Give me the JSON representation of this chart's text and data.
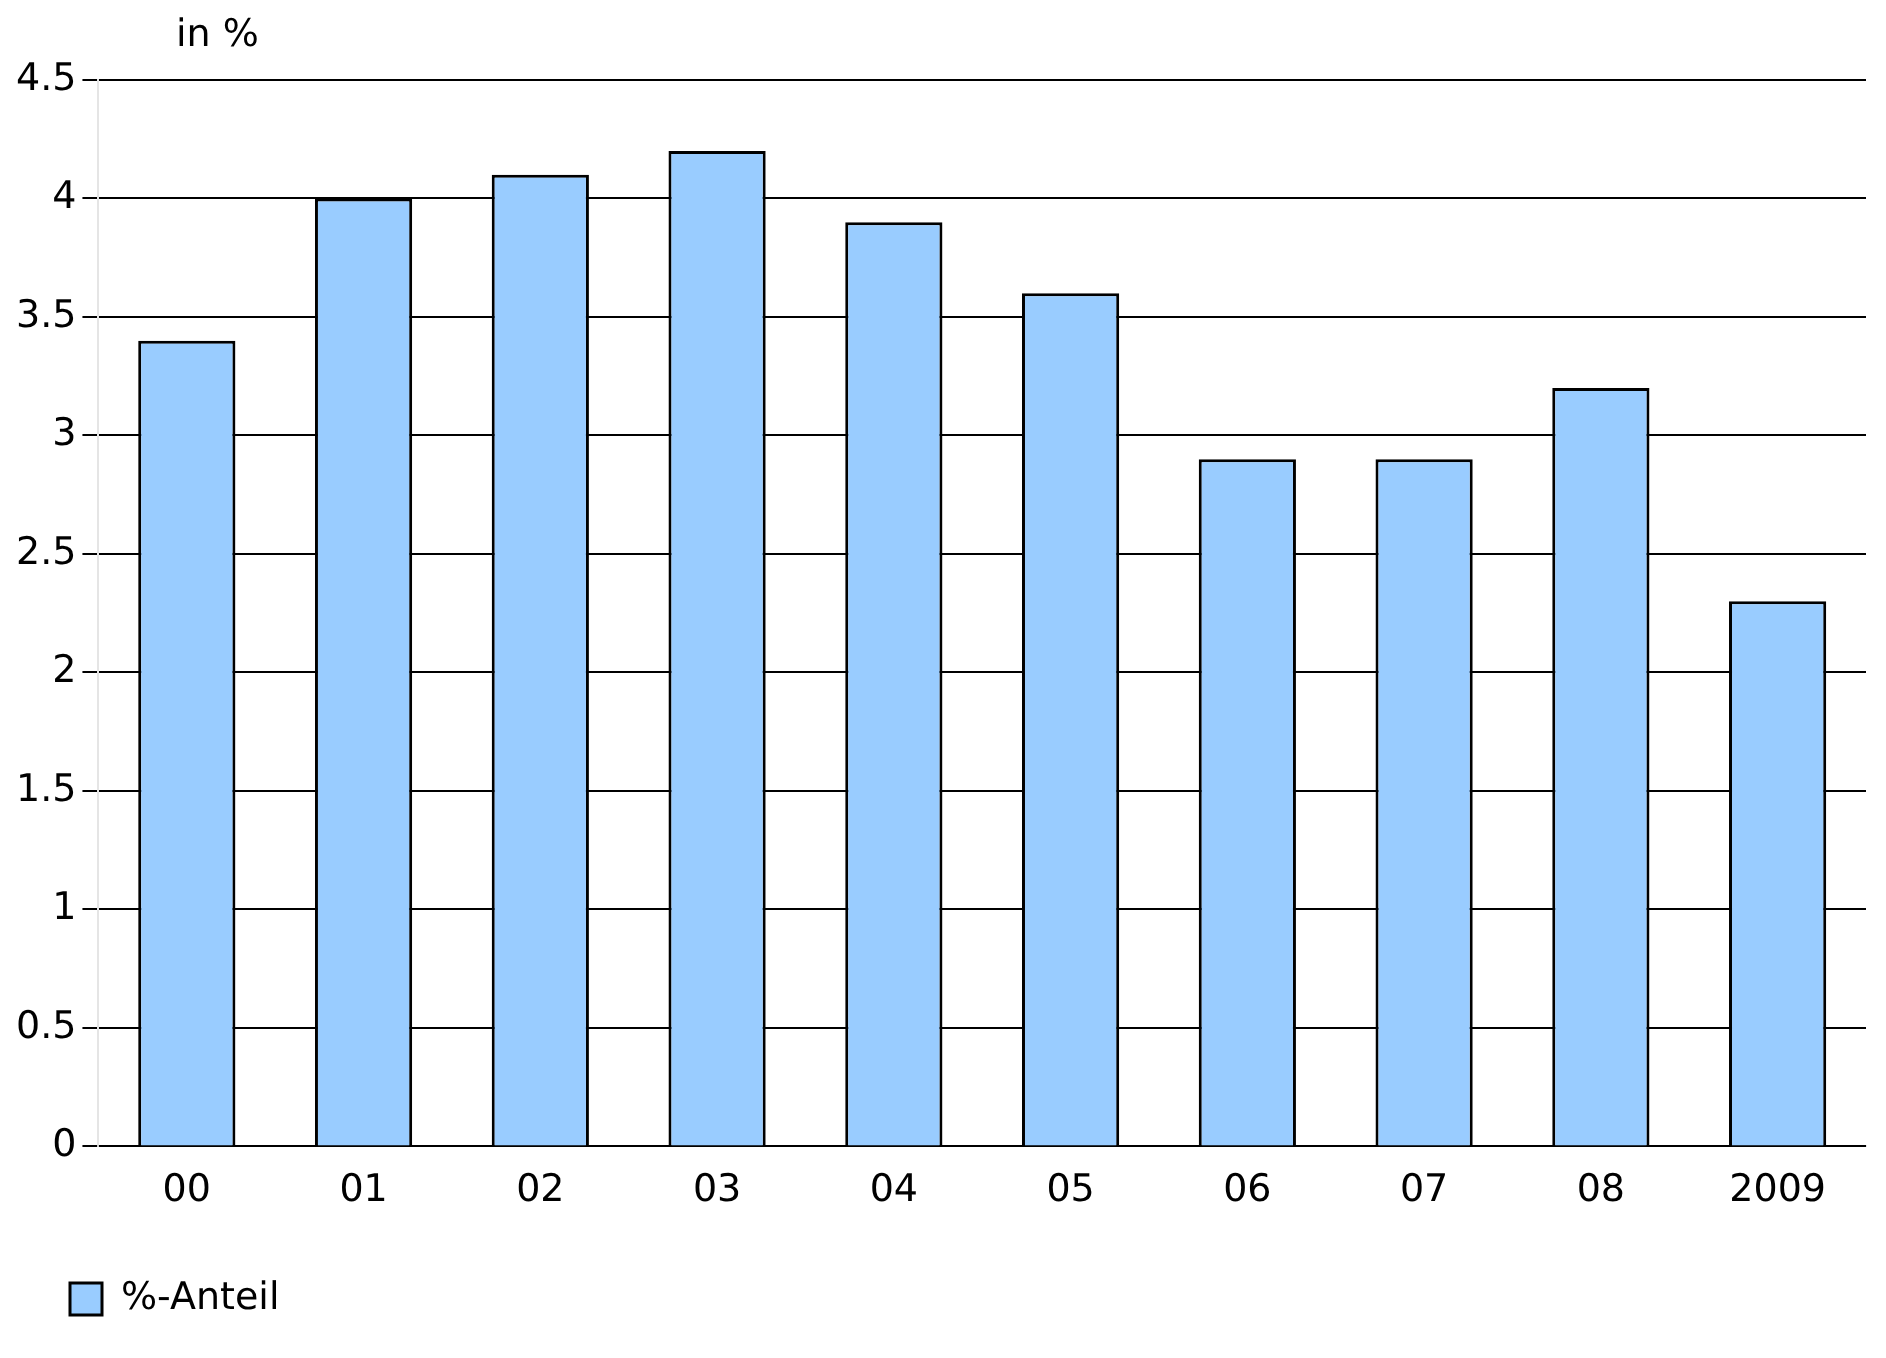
{
  "chart_data": {
    "type": "bar",
    "ylabel": "in %",
    "categories": [
      "00",
      "01",
      "02",
      "03",
      "04",
      "05",
      "06",
      "07",
      "08",
      "2009"
    ],
    "series": [
      {
        "name": "%-Anteil",
        "color": "#99ccff",
        "values": [
          3.4,
          4.0,
          4.1,
          4.2,
          3.9,
          3.6,
          2.9,
          2.9,
          3.2,
          2.3
        ]
      }
    ],
    "ylim": [
      0,
      4.5
    ],
    "yticks": [
      0,
      0.5,
      1,
      1.5,
      2,
      2.5,
      3,
      3.5,
      4,
      4.5
    ],
    "grid": "y",
    "legend": "bottom"
  }
}
